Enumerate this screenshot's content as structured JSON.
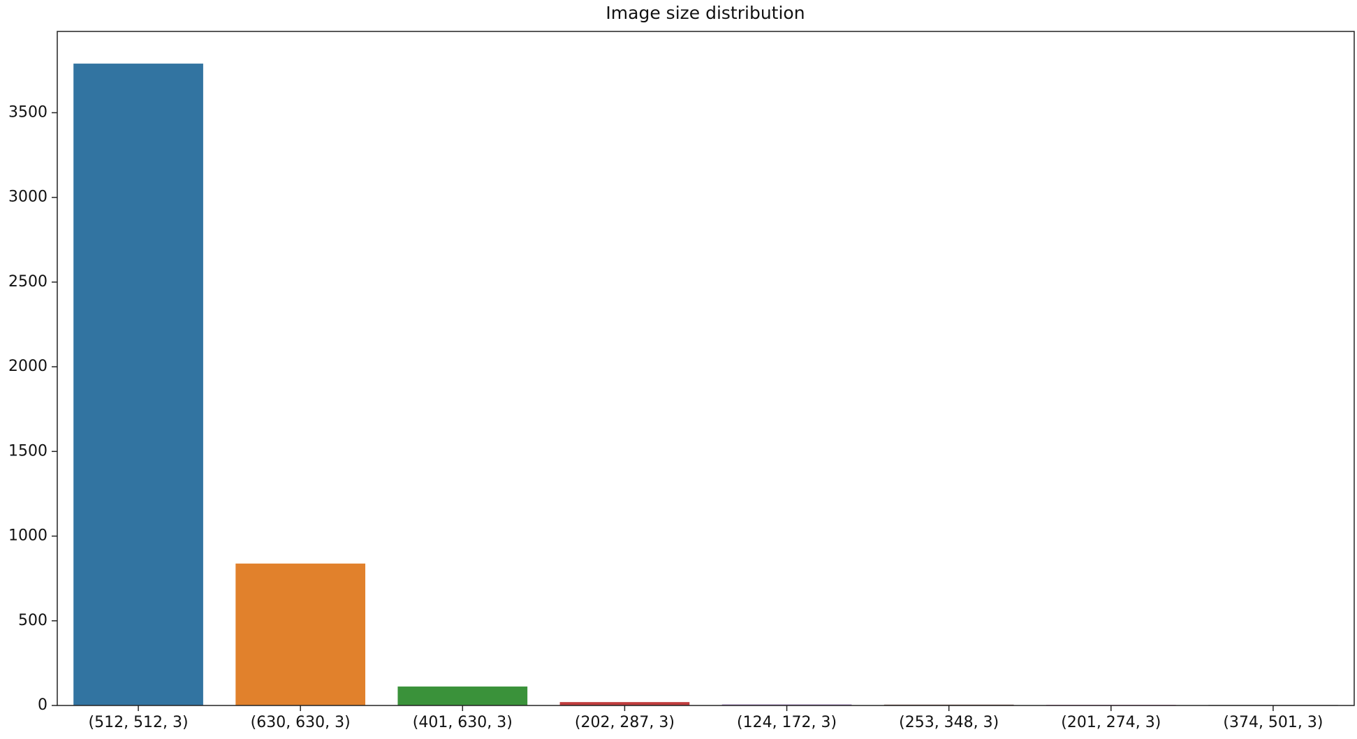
{
  "chart_data": {
    "type": "bar",
    "title": "Image size distribution",
    "categories": [
      "(512, 512, 3)",
      "(630, 630, 3)",
      "(401, 630, 3)",
      "(202, 287, 3)",
      "(124, 172, 3)",
      "(253, 348, 3)",
      "(201, 274, 3)",
      "(374, 501, 3)"
    ],
    "values": [
      3790,
      838,
      112,
      20,
      6,
      5,
      4,
      3
    ],
    "colors": [
      "#3274a1",
      "#e1812c",
      "#3a923a",
      "#c03d3e",
      "#9372b2",
      "#845b53",
      "#d684bd",
      "#7f7f7f"
    ],
    "ylim": [
      0,
      3980
    ],
    "yticks": [
      0,
      500,
      1000,
      1500,
      2000,
      2500,
      3000,
      3500
    ],
    "grid": false
  }
}
